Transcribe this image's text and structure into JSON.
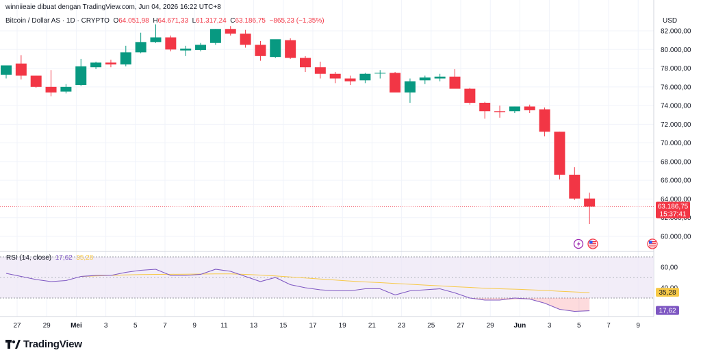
{
  "credit": "winniieaie dibuat dengan TradingView.com, Jun 04, 2026 16:22 UTC+8",
  "legend": {
    "symbol": "Bitcoin / Dollar AS · 1D · CRYPTO",
    "o_label": "O",
    "o": "64.051,98",
    "h_label": "H",
    "h": "64.671,33",
    "l_label": "L",
    "l": "61.317,24",
    "c_label": "C",
    "c": "63.186,75",
    "change": "−865,23 (−1,35%)"
  },
  "currency": "USD",
  "rsi": {
    "label": "RSI (14, close)",
    "value": "17,62",
    "ma_value": "35,28"
  },
  "last_price_badge": {
    "price": "63.186,75",
    "countdown": "15:37:41"
  },
  "brand": "TradingView",
  "colors": {
    "up": "#089981",
    "down": "#f23645",
    "rsi": "#7e57c2",
    "rsi_ma": "#f7c948",
    "band": "#ede7f6"
  },
  "chart_data": [
    {
      "type": "candlestick",
      "ylabel": "USD",
      "ylim": [
        58500,
        83000
      ],
      "y_ticks": [
        "82.000,00",
        "80.000,00",
        "78.000,00",
        "76.000,00",
        "74.000,00",
        "72.000,00",
        "70.000,00",
        "68.000,00",
        "66.000,00",
        "64.000,00",
        "62.000,00",
        "60.000,00"
      ],
      "y_tick_values": [
        82000,
        80000,
        78000,
        76000,
        74000,
        72000,
        70000,
        68000,
        66000,
        64000,
        62000,
        60000
      ],
      "x_ticks": [
        "27",
        "29",
        "Mei",
        "3",
        "5",
        "7",
        "9",
        "11",
        "13",
        "15",
        "17",
        "19",
        "21",
        "23",
        "25",
        "27",
        "29",
        "Jun",
        "3",
        "5",
        "7",
        "9"
      ],
      "candles": [
        {
          "o": 77300,
          "h": 78200,
          "l": 76900,
          "c": 78300
        },
        {
          "o": 78500,
          "h": 79400,
          "l": 76800,
          "c": 77200
        },
        {
          "o": 77200,
          "h": 77200,
          "l": 75900,
          "c": 76000
        },
        {
          "o": 76000,
          "h": 77800,
          "l": 75000,
          "c": 75400
        },
        {
          "o": 75500,
          "h": 76300,
          "l": 75300,
          "c": 76000
        },
        {
          "o": 76200,
          "h": 79000,
          "l": 76100,
          "c": 78200
        },
        {
          "o": 78100,
          "h": 78700,
          "l": 77900,
          "c": 78600
        },
        {
          "o": 78600,
          "h": 78900,
          "l": 78100,
          "c": 78400
        },
        {
          "o": 78400,
          "h": 80400,
          "l": 78200,
          "c": 79700
        },
        {
          "o": 79700,
          "h": 81800,
          "l": 79600,
          "c": 80800
        },
        {
          "o": 80800,
          "h": 82700,
          "l": 80700,
          "c": 81300
        },
        {
          "o": 81300,
          "h": 81500,
          "l": 79800,
          "c": 80000
        },
        {
          "o": 79900,
          "h": 80400,
          "l": 79300,
          "c": 80100
        },
        {
          "o": 79950,
          "h": 80700,
          "l": 79800,
          "c": 80500
        },
        {
          "o": 80700,
          "h": 82200,
          "l": 80500,
          "c": 82200
        },
        {
          "o": 82200,
          "h": 82500,
          "l": 81500,
          "c": 81700
        },
        {
          "o": 81700,
          "h": 82100,
          "l": 80200,
          "c": 80500
        },
        {
          "o": 80500,
          "h": 80900,
          "l": 78800,
          "c": 79300
        },
        {
          "o": 79200,
          "h": 81000,
          "l": 79100,
          "c": 81100
        },
        {
          "o": 81000,
          "h": 81200,
          "l": 79000,
          "c": 79100
        },
        {
          "o": 79100,
          "h": 79300,
          "l": 77600,
          "c": 78100
        },
        {
          "o": 78100,
          "h": 78700,
          "l": 76900,
          "c": 77400
        },
        {
          "o": 77400,
          "h": 77600,
          "l": 76400,
          "c": 76900
        },
        {
          "o": 76900,
          "h": 77200,
          "l": 76200,
          "c": 76600
        },
        {
          "o": 76700,
          "h": 77500,
          "l": 76400,
          "c": 77400
        },
        {
          "o": 77500,
          "h": 77800,
          "l": 76900,
          "c": 77500
        },
        {
          "o": 77500,
          "h": 77600,
          "l": 75400,
          "c": 75400
        },
        {
          "o": 75400,
          "h": 76900,
          "l": 74300,
          "c": 76600
        },
        {
          "o": 76700,
          "h": 77200,
          "l": 76300,
          "c": 77000
        },
        {
          "o": 76900,
          "h": 77400,
          "l": 76600,
          "c": 77100
        },
        {
          "o": 77100,
          "h": 77900,
          "l": 75800,
          "c": 75800
        },
        {
          "o": 75800,
          "h": 75900,
          "l": 74100,
          "c": 74300
        },
        {
          "o": 74300,
          "h": 74400,
          "l": 72600,
          "c": 73400
        },
        {
          "o": 73400,
          "h": 74000,
          "l": 72700,
          "c": 73300
        },
        {
          "o": 73400,
          "h": 73900,
          "l": 73200,
          "c": 73900
        },
        {
          "o": 73900,
          "h": 74100,
          "l": 73200,
          "c": 73500
        },
        {
          "o": 73600,
          "h": 73800,
          "l": 70700,
          "c": 71200
        },
        {
          "o": 71200,
          "h": 71200,
          "l": 66100,
          "c": 66600
        },
        {
          "o": 66600,
          "h": 67400,
          "l": 63900,
          "c": 64050
        },
        {
          "o": 64052,
          "h": 64671,
          "l": 61317,
          "c": 63187
        }
      ]
    },
    {
      "type": "line",
      "title": "RSI (14, close)",
      "ylim": [
        10,
        72
      ],
      "y_ticks": [
        "60,00",
        "40,00"
      ],
      "y_tick_values": [
        60,
        40
      ],
      "bands": [
        70,
        30
      ],
      "series": [
        {
          "name": "RSI",
          "values": [
            54,
            51,
            48,
            46,
            47,
            51,
            52,
            52,
            55,
            57,
            58,
            52,
            52,
            53,
            58,
            56,
            51,
            46,
            50,
            43,
            40,
            38,
            37,
            37,
            39,
            39,
            33,
            37,
            38,
            39,
            35,
            30,
            28,
            28,
            30,
            29,
            25,
            19,
            17,
            17.62
          ]
        },
        {
          "name": "RSI MA",
          "values": [
            null,
            null,
            null,
            null,
            null,
            51,
            51.5,
            52,
            52.5,
            52.8,
            53,
            53.1,
            53.2,
            53.3,
            53.5,
            53.5,
            53,
            52.3,
            51.5,
            50.5,
            49.5,
            48.5,
            47.5,
            46.5,
            45.7,
            45,
            44.2,
            43.4,
            42.6,
            41.8,
            41,
            40.3,
            39.5,
            39,
            38.6,
            38,
            37.4,
            36.6,
            35.9,
            35.28
          ]
        }
      ]
    }
  ]
}
